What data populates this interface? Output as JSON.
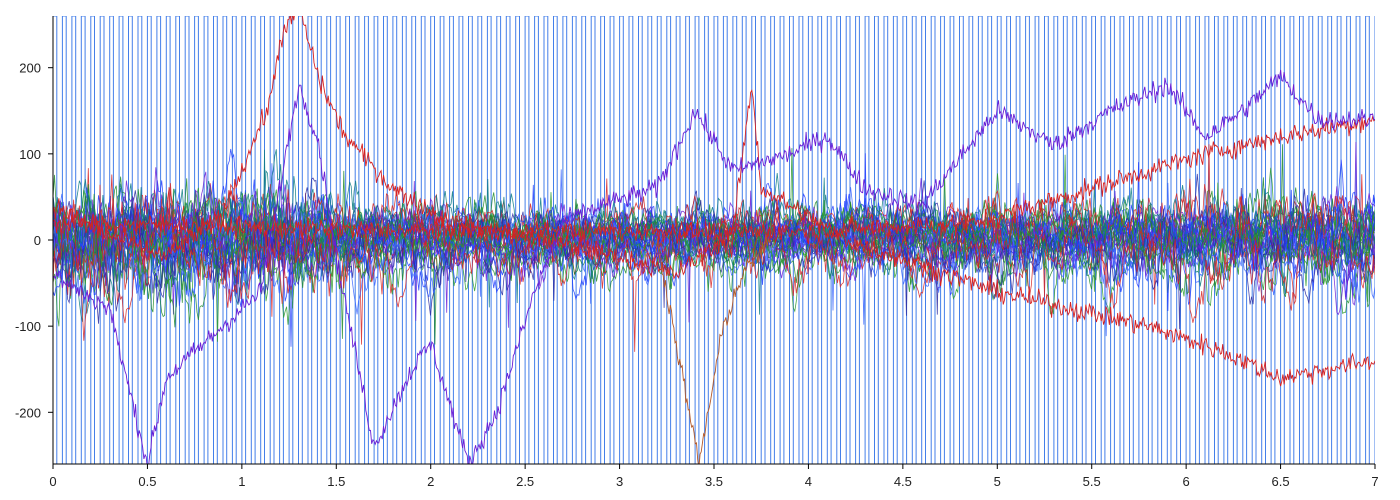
{
  "chart_data": {
    "type": "line",
    "title": "",
    "xlabel": "",
    "ylabel": "",
    "xlim": [
      0,
      7
    ],
    "ylim": [
      -260,
      260
    ],
    "x_ticks": [
      0,
      0.5,
      1,
      1.5,
      2,
      2.5,
      3,
      3.5,
      4,
      4.5,
      5,
      5.5,
      6,
      6.5,
      7
    ],
    "x_tick_labels": [
      "0",
      "0.5",
      "1",
      "1.5",
      "2",
      "2.5",
      "3",
      "3.5",
      "4",
      "4.5",
      "5",
      "5.5",
      "6",
      "6.5",
      "7"
    ],
    "y_ticks": [
      200,
      100,
      0,
      -100,
      -200
    ],
    "y_tick_labels": [
      "200",
      "100",
      "0",
      "-100",
      "-200"
    ],
    "grid": false,
    "legend": "none",
    "colors": {
      "stimulus": "#3a78e8",
      "series_palette": [
        "#1f3cff",
        "#d62222",
        "#1f8a2a",
        "#6a1fd6",
        "#0a7a80",
        "#3a66ff",
        "#2a2aa0",
        "#2a9a2a"
      ],
      "axis": "#000000"
    },
    "stimulus": {
      "description": "rectangular pulse train",
      "period": 0.05,
      "duty": 0.4,
      "low": -260,
      "high": 260
    },
    "noise_bundle": {
      "count": 34,
      "band_mean_abs": 30,
      "spike_abs": 110
    },
    "series": [
      {
        "color": "#d62222",
        "points": [
          [
            0,
            40
          ],
          [
            0.25,
            10
          ],
          [
            0.6,
            -20
          ],
          [
            0.9,
            30
          ],
          [
            1.15,
            160
          ],
          [
            1.2,
            230
          ],
          [
            1.3,
            270
          ],
          [
            1.42,
            180
          ],
          [
            1.55,
            120
          ],
          [
            1.8,
            60
          ],
          [
            2.1,
            20
          ],
          [
            2.6,
            0
          ],
          [
            3.0,
            -20
          ],
          [
            3.3,
            -40
          ],
          [
            3.6,
            10
          ],
          [
            3.7,
            180
          ],
          [
            3.75,
            60
          ],
          [
            4.2,
            0
          ],
          [
            5.0,
            -60
          ],
          [
            5.8,
            -100
          ],
          [
            6.2,
            -130
          ],
          [
            6.5,
            -160
          ],
          [
            7.0,
            -140
          ]
        ]
      },
      {
        "color": "#d62222",
        "points": [
          [
            0,
            20
          ],
          [
            2,
            10
          ],
          [
            4,
            10
          ],
          [
            4.9,
            20
          ],
          [
            5.5,
            60
          ],
          [
            6.1,
            100
          ],
          [
            6.5,
            120
          ],
          [
            7.0,
            140
          ]
        ]
      },
      {
        "color": "#6a1fd6",
        "points": [
          [
            0,
            -40
          ],
          [
            0.3,
            -80
          ],
          [
            0.5,
            -260
          ],
          [
            0.6,
            -160
          ],
          [
            0.9,
            -100
          ],
          [
            1.1,
            -60
          ],
          [
            1.3,
            180
          ],
          [
            1.4,
            120
          ],
          [
            1.5,
            -20
          ],
          [
            1.7,
            -240
          ],
          [
            1.9,
            -150
          ],
          [
            2.0,
            -120
          ],
          [
            2.2,
            -260
          ],
          [
            2.35,
            -200
          ],
          [
            2.55,
            -60
          ],
          [
            2.7,
            20
          ],
          [
            2.9,
            40
          ],
          [
            3.2,
            60
          ],
          [
            3.4,
            150
          ],
          [
            3.6,
            80
          ],
          [
            3.9,
            100
          ],
          [
            4.1,
            120
          ],
          [
            4.3,
            60
          ],
          [
            4.6,
            40
          ],
          [
            5.0,
            150
          ],
          [
            5.3,
            110
          ],
          [
            5.6,
            150
          ],
          [
            5.9,
            180
          ],
          [
            6.1,
            120
          ],
          [
            6.3,
            150
          ],
          [
            6.5,
            190
          ],
          [
            6.7,
            140
          ],
          [
            7.0,
            140
          ]
        ]
      },
      {
        "color": "#b35a2a",
        "points": [
          [
            3.2,
            0
          ],
          [
            3.3,
            -120
          ],
          [
            3.42,
            -260
          ],
          [
            3.55,
            -100
          ],
          [
            3.65,
            -40
          ],
          [
            3.8,
            0
          ]
        ]
      }
    ]
  }
}
